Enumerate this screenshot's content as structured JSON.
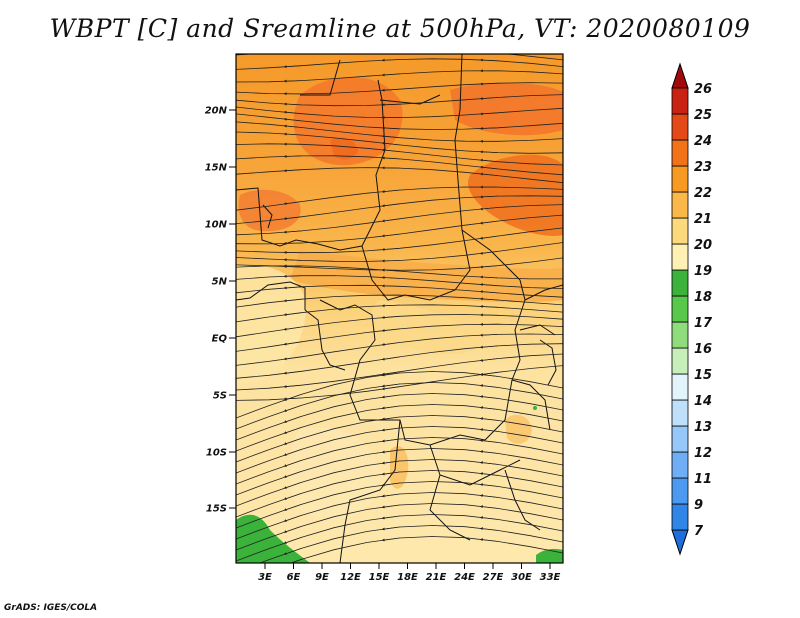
{
  "title": "WBPT [C] and Sreamline at 500hPa, VT: 2020080109",
  "credit": "GrADS: IGES/COLA",
  "map": {
    "variable": "WBPT [C]",
    "level": "500hPa",
    "valid_time": "2020080109",
    "lat_labels": [
      "20N",
      "15N",
      "10N",
      "5N",
      "EQ",
      "5S",
      "10S",
      "15S"
    ],
    "lon_labels": [
      "3E",
      "6E",
      "9E",
      "12E",
      "15E",
      "18E",
      "21E",
      "24E",
      "27E",
      "30E",
      "33E"
    ]
  },
  "colorbar": {
    "labels": [
      "7",
      "9",
      "11",
      "12",
      "13",
      "14",
      "15",
      "16",
      "17",
      "18",
      "19",
      "20",
      "21",
      "22",
      "23",
      "24",
      "25",
      "26"
    ],
    "colors": [
      "#1e6fd9",
      "#2f86e6",
      "#4b9af0",
      "#6daef5",
      "#95c7f8",
      "#bfe0fb",
      "#e4f4fb",
      "#c6efb9",
      "#8fdc7c",
      "#57c84a",
      "#3bb23a",
      "#fff0b4",
      "#fcd97c",
      "#f9b848",
      "#f79a22",
      "#f2721a",
      "#e44a17",
      "#c92212",
      "#a00a0a"
    ]
  }
}
